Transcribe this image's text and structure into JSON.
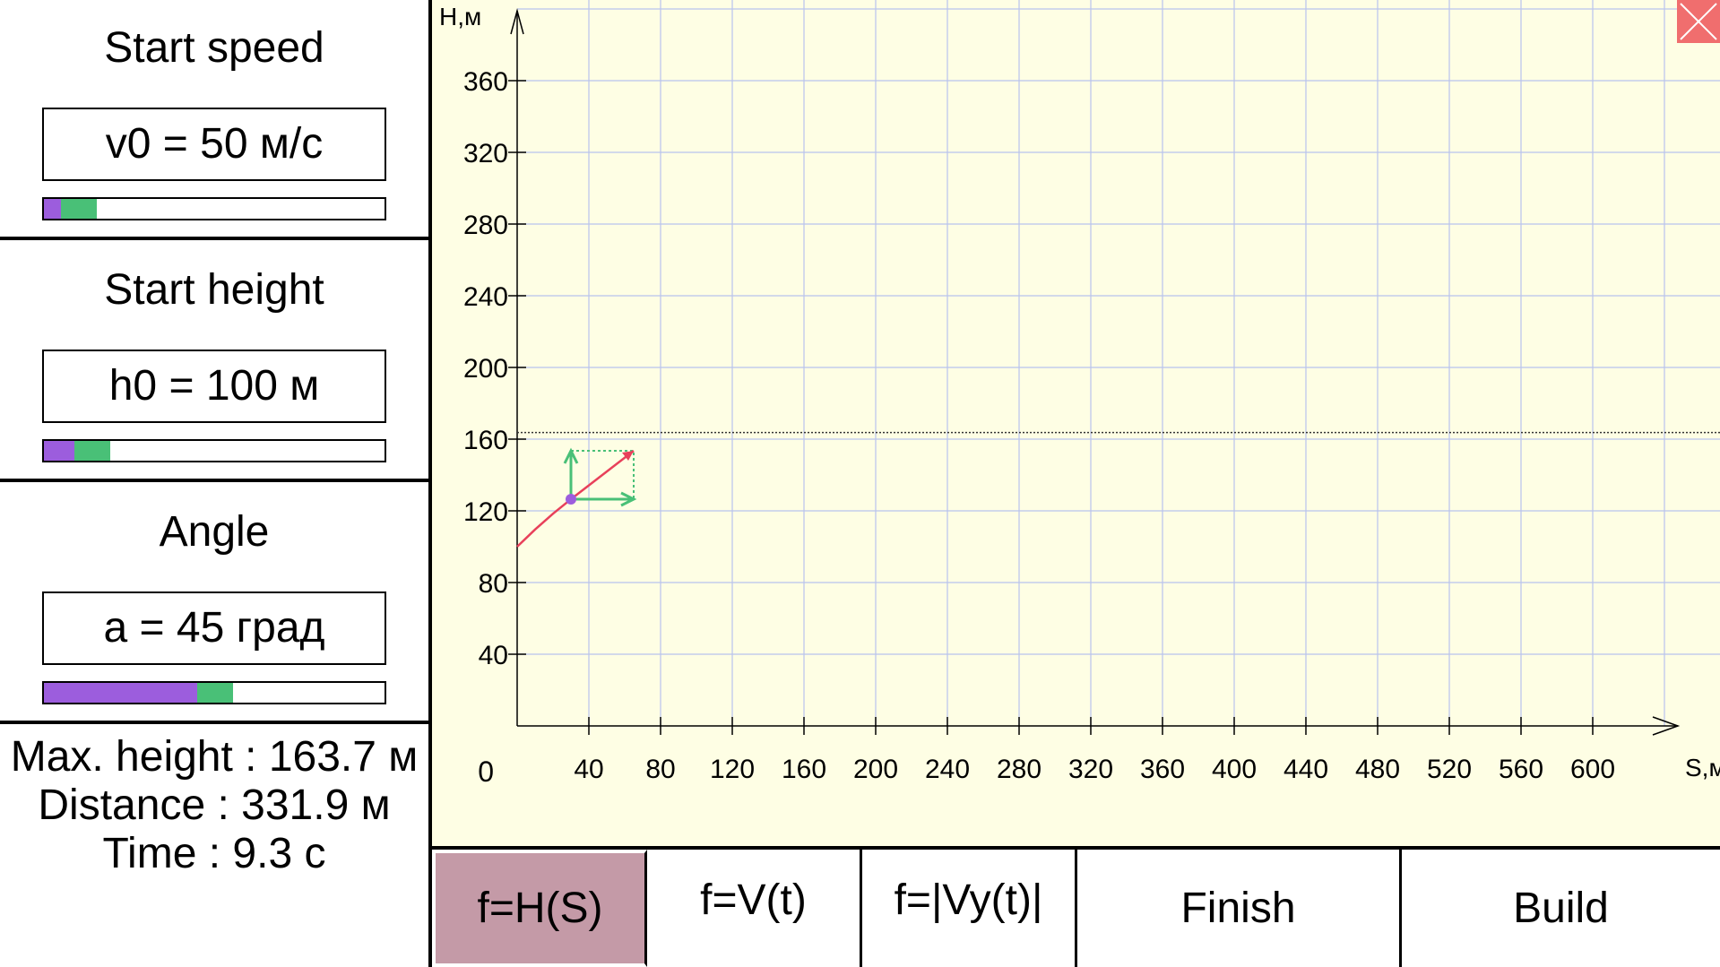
{
  "params": [
    {
      "title": "Start speed",
      "value": "v0 = 50 м/с",
      "slider_fraction": 0.05
    },
    {
      "title": "Start height",
      "value": "h0 = 100 м",
      "slider_fraction": 0.09
    },
    {
      "title": "Angle",
      "value": "a = 45 град",
      "slider_fraction": 0.45
    }
  ],
  "results": {
    "max_height": "Max. height : 163.7 м",
    "distance": "Distance : 331.9 м",
    "time": "Time : 9.3 с"
  },
  "tabs": [
    {
      "label": "f=H(S)",
      "active": true
    },
    {
      "label": "f=V(t)",
      "active": false
    },
    {
      "label": "f=|Vy(t)|",
      "active": false
    }
  ],
  "actions": {
    "finish": "Finish",
    "build": "Build"
  },
  "colors": {
    "slider_fill": "#9c5ddd",
    "slider_thumb": "#49c077",
    "graph_bg": "#fefee4",
    "grid": "#b9c3ee",
    "trajectory": "#e8405a",
    "velocity_components": "#49c077",
    "active_tab": "#c49aa7",
    "close_button": "#f06e6e"
  },
  "chart_data": {
    "type": "line",
    "xlabel": "S,м",
    "ylabel": "H,м",
    "x_ticks": [
      40,
      80,
      120,
      160,
      200,
      240,
      280,
      320,
      360,
      400,
      440,
      480,
      520,
      560,
      600
    ],
    "y_ticks": [
      40,
      80,
      120,
      160,
      200,
      240,
      280,
      320,
      360
    ],
    "origin_label": "0",
    "xlim": [
      0,
      640
    ],
    "ylim": [
      0,
      390
    ],
    "grid": true,
    "max_height_line": 163.7,
    "series": [
      {
        "x": [
          0,
          10,
          20,
          30
        ],
        "y": [
          100,
          109.6,
          118.4,
          126.5
        ]
      }
    ],
    "current_point": {
      "x": 30,
      "y": 126.5
    },
    "velocity_vector": {
      "dx": 35,
      "dy": 27
    }
  }
}
